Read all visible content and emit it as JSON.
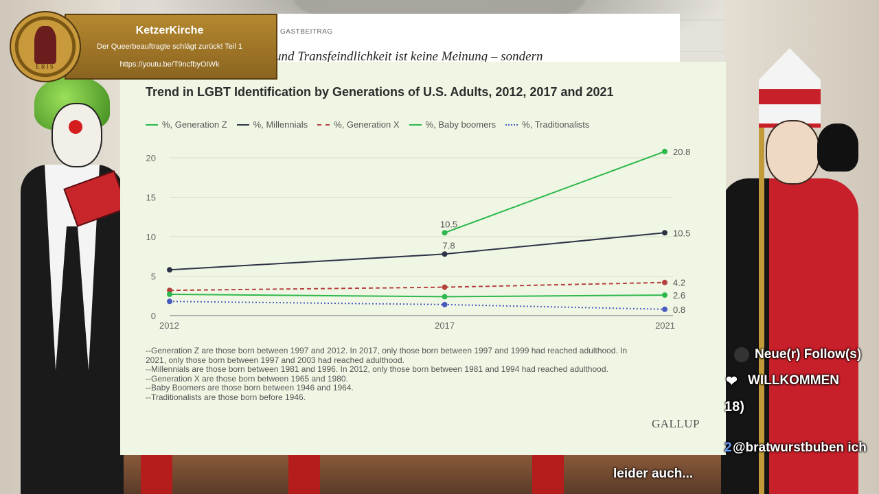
{
  "stream": {
    "channel": "KetzerKirche",
    "video_title": "Der Queerbeauftragte schlägt zurück! Teil 1",
    "url": "https://youtu.be/T9ncfbyOIWk",
    "logo_text": "ERIS"
  },
  "article": {
    "tag": "GASTBEITRAG",
    "headline": "und Transfeindlichkeit ist keine Meinung – sondern"
  },
  "chat": {
    "follow_line": "Neue(r) Follow(s)",
    "welcome_line": "WILLKOMMEN",
    "count_line": "18)",
    "message_prefix": "2",
    "message": "@bratwurstbuben ich",
    "caption": "leider auch..."
  },
  "chart_data": {
    "type": "line",
    "title": "Trend in LGBT Identification by Generations of U.S. Adults, 2012, 2017 and 2021",
    "x": [
      2012,
      2017,
      2021
    ],
    "ylim": [
      0,
      20
    ],
    "yticks": [
      0,
      5,
      10,
      15,
      20
    ],
    "legend_position": "top",
    "grid": true,
    "series": [
      {
        "name": "%, Generation Z",
        "color": "#2db84d",
        "style": "solid",
        "values": [
          null,
          10.5,
          20.8
        ],
        "labels": [
          "",
          "10.5",
          "20.8"
        ]
      },
      {
        "name": "%, Millennials",
        "color": "#2c3347",
        "style": "solid",
        "values": [
          5.8,
          7.8,
          10.5
        ],
        "labels": [
          "",
          "7.8",
          "10.5"
        ]
      },
      {
        "name": "%, Generation X",
        "color": "#b5413f",
        "style": "dashed",
        "values": [
          3.2,
          3.6,
          4.2
        ],
        "labels": [
          "",
          "",
          "4.2"
        ]
      },
      {
        "name": "%, Baby boomers",
        "color": "#2db84d",
        "style": "solid",
        "values": [
          2.7,
          2.4,
          2.6
        ],
        "labels": [
          "",
          "",
          "2.6"
        ]
      },
      {
        "name": "%, Traditionalists",
        "color": "#4a5bc0",
        "style": "dotted",
        "values": [
          1.8,
          1.4,
          0.8
        ],
        "labels": [
          "",
          "",
          "0.8"
        ]
      }
    ],
    "notes": [
      "--Generation Z are those born between 1997 and 2012. In 2017, only those born between 1997 and 1999 had reached adulthood. In",
      "2021, only those born between 1997 and 2003 had reached adulthood.",
      "--Millennials are those born between 1981 and 1996. In 2012, only those born between 1981 and 1994 had reached adulthood.",
      "--Generation X are those born between 1965 and 1980.",
      "--Baby Boomers are those born between 1946 and 1964.",
      "--Traditionalists are those born before 1946."
    ],
    "source": "GALLUP"
  }
}
